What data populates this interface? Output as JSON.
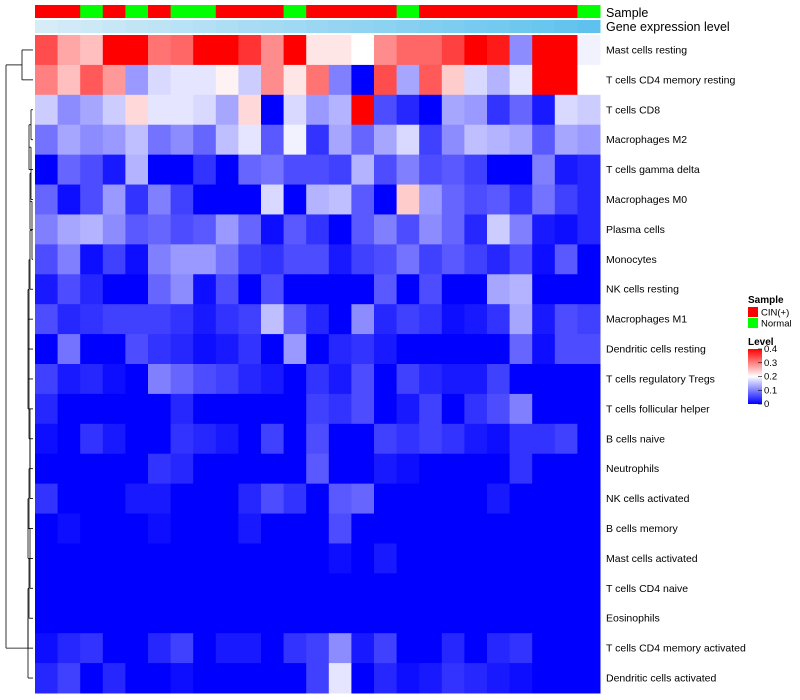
{
  "chart_data": {
    "type": "heatmap",
    "annotations": {
      "sample_label": "Sample",
      "expr_label": "Gene expression level",
      "sample": [
        0,
        0,
        1,
        0,
        1,
        0,
        1,
        1,
        0,
        0,
        0,
        1,
        0,
        0,
        0,
        0,
        1,
        0,
        0,
        0,
        0,
        0,
        0,
        0,
        1
      ],
      "expr_rank": [
        0,
        1,
        2,
        3,
        4,
        5,
        6,
        7,
        8,
        9,
        10,
        11,
        12,
        13,
        14,
        15,
        16,
        17,
        18,
        19,
        20,
        21,
        22,
        23,
        24
      ]
    },
    "rows": [
      "Mast cells resting",
      "T cells CD4 memory resting",
      "T cells CD8",
      "Macrophages M2",
      "T cells gamma delta",
      "Macrophages M0",
      "Plasma cells",
      "Monocytes",
      "NK cells resting",
      "Macrophages M1",
      "Dendritic cells resting",
      "T cells regulatory  Tregs",
      "T cells follicular helper",
      "B cells naive",
      "Neutrophils",
      "NK cells activated",
      "B cells memory",
      "Mast cells activated",
      "T cells CD4 naive",
      "Eosinophils",
      "T cells CD4 memory activated",
      "Dendritic cells activated"
    ],
    "values": [
      [
        0.34,
        0.27,
        0.25,
        0.4,
        0.4,
        0.31,
        0.32,
        0.4,
        0.4,
        0.36,
        0.29,
        0.4,
        0.22,
        0.22,
        0.2,
        0.29,
        0.32,
        0.32,
        0.35,
        0.4,
        0.38,
        0.11,
        0.4,
        0.4,
        0.19
      ],
      [
        0.3,
        0.25,
        0.33,
        0.28,
        0.12,
        0.17,
        0.18,
        0.18,
        0.21,
        0.16,
        0.29,
        0.22,
        0.31,
        0.1,
        0.0,
        0.34,
        0.13,
        0.33,
        0.24,
        0.17,
        0.14,
        0.18,
        0.4,
        0.4,
        0.2
      ],
      [
        0.16,
        0.11,
        0.13,
        0.16,
        0.23,
        0.18,
        0.18,
        0.17,
        0.13,
        0.23,
        0.0,
        0.17,
        0.12,
        0.14,
        0.4,
        0.06,
        0.03,
        0.0,
        0.13,
        0.12,
        0.04,
        0.08,
        0.02,
        0.17,
        0.16
      ],
      [
        0.09,
        0.13,
        0.11,
        0.12,
        0.15,
        0.09,
        0.11,
        0.08,
        0.15,
        0.18,
        0.07,
        0.19,
        0.04,
        0.13,
        0.08,
        0.13,
        0.17,
        0.05,
        0.11,
        0.15,
        0.14,
        0.13,
        0.07,
        0.13,
        0.12
      ],
      [
        0.0,
        0.08,
        0.06,
        0.02,
        0.14,
        0.0,
        0.0,
        0.04,
        0.0,
        0.08,
        0.09,
        0.06,
        0.06,
        0.05,
        0.14,
        0.06,
        0.1,
        0.06,
        0.07,
        0.05,
        0.0,
        0.0,
        0.1,
        0.02,
        0.03
      ],
      [
        0.08,
        0.01,
        0.06,
        0.12,
        0.04,
        0.1,
        0.05,
        0.0,
        0.0,
        0.0,
        0.17,
        0.0,
        0.14,
        0.15,
        0.07,
        0.0,
        0.24,
        0.12,
        0.08,
        0.06,
        0.07,
        0.04,
        0.09,
        0.05,
        0.03
      ],
      [
        0.1,
        0.13,
        0.14,
        0.11,
        0.07,
        0.08,
        0.06,
        0.07,
        0.12,
        0.08,
        0.01,
        0.07,
        0.04,
        0.0,
        0.07,
        0.1,
        0.06,
        0.11,
        0.08,
        0.03,
        0.16,
        0.1,
        0.02,
        0.01,
        0.03
      ],
      [
        0.06,
        0.1,
        0.01,
        0.05,
        0.01,
        0.1,
        0.12,
        0.12,
        0.09,
        0.05,
        0.04,
        0.06,
        0.06,
        0.02,
        0.05,
        0.06,
        0.09,
        0.05,
        0.07,
        0.05,
        0.03,
        0.06,
        0.01,
        0.07,
        0.0
      ],
      [
        0.02,
        0.06,
        0.03,
        0.0,
        0.0,
        0.08,
        0.11,
        0.01,
        0.06,
        0.0,
        0.06,
        0.0,
        0.0,
        0.0,
        0.0,
        0.07,
        0.0,
        0.06,
        0.0,
        0.0,
        0.13,
        0.14,
        0.0,
        0.0,
        0.0
      ],
      [
        0.06,
        0.03,
        0.04,
        0.05,
        0.05,
        0.05,
        0.04,
        0.02,
        0.04,
        0.05,
        0.15,
        0.07,
        0.03,
        0.0,
        0.11,
        0.03,
        0.05,
        0.04,
        0.01,
        0.02,
        0.04,
        0.13,
        0.02,
        0.06,
        0.05
      ],
      [
        0.0,
        0.09,
        0.0,
        0.0,
        0.06,
        0.04,
        0.03,
        0.01,
        0.02,
        0.04,
        0.0,
        0.12,
        0.0,
        0.03,
        0.04,
        0.02,
        0.0,
        0.0,
        0.0,
        0.0,
        0.0,
        0.08,
        0.01,
        0.06,
        0.06
      ],
      [
        0.05,
        0.02,
        0.03,
        0.01,
        0.0,
        0.1,
        0.08,
        0.06,
        0.05,
        0.03,
        0.02,
        0.0,
        0.04,
        0.02,
        0.06,
        0.0,
        0.05,
        0.03,
        0.02,
        0.02,
        0.05,
        0.0,
        0.0,
        0.0,
        0.0
      ],
      [
        0.03,
        0.0,
        0.0,
        0.0,
        0.0,
        0.0,
        0.03,
        0.0,
        0.0,
        0.0,
        0.0,
        0.0,
        0.05,
        0.04,
        0.06,
        0.0,
        0.02,
        0.05,
        0.0,
        0.04,
        0.06,
        0.1,
        0.0,
        0.0,
        0.0
      ],
      [
        0.01,
        0.0,
        0.04,
        0.02,
        0.0,
        0.0,
        0.04,
        0.03,
        0.02,
        0.0,
        0.05,
        0.0,
        0.06,
        0.0,
        0.0,
        0.05,
        0.04,
        0.05,
        0.04,
        0.02,
        0.01,
        0.04,
        0.04,
        0.05,
        0.0
      ],
      [
        0.0,
        0.0,
        0.0,
        0.0,
        0.0,
        0.04,
        0.03,
        0.0,
        0.0,
        0.0,
        0.0,
        0.0,
        0.07,
        0.0,
        0.0,
        0.02,
        0.01,
        0.0,
        0.0,
        0.0,
        0.0,
        0.04,
        0.0,
        0.0,
        0.0
      ],
      [
        0.04,
        0.0,
        0.0,
        0.0,
        0.02,
        0.02,
        0.0,
        0.0,
        0.0,
        0.03,
        0.06,
        0.04,
        0.0,
        0.07,
        0.08,
        0.0,
        0.0,
        0.0,
        0.0,
        0.0,
        0.02,
        0.0,
        0.0,
        0.0,
        0.0
      ],
      [
        0.0,
        0.01,
        0.0,
        0.0,
        0.0,
        0.01,
        0.0,
        0.0,
        0.0,
        0.02,
        0.0,
        0.0,
        0.0,
        0.06,
        0.0,
        0.0,
        0.0,
        0.0,
        0.0,
        0.0,
        0.0,
        0.0,
        0.0,
        0.0,
        0.0
      ],
      [
        0.0,
        0.0,
        0.0,
        0.0,
        0.0,
        0.0,
        0.0,
        0.0,
        0.0,
        0.0,
        0.0,
        0.0,
        0.0,
        0.01,
        0.0,
        0.02,
        0.0,
        0.0,
        0.0,
        0.0,
        0.0,
        0.0,
        0.0,
        0.0,
        0.0
      ],
      [
        0.0,
        0.0,
        0.0,
        0.0,
        0.0,
        0.0,
        0.0,
        0.0,
        0.0,
        0.0,
        0.0,
        0.0,
        0.0,
        0.0,
        0.0,
        0.0,
        0.0,
        0.0,
        0.0,
        0.0,
        0.0,
        0.0,
        0.0,
        0.0,
        0.0
      ],
      [
        0.0,
        0.0,
        0.0,
        0.0,
        0.0,
        0.0,
        0.0,
        0.0,
        0.0,
        0.0,
        0.0,
        0.0,
        0.0,
        0.0,
        0.0,
        0.0,
        0.0,
        0.0,
        0.0,
        0.0,
        0.0,
        0.0,
        0.0,
        0.0,
        0.0
      ],
      [
        0.01,
        0.03,
        0.04,
        0.0,
        0.0,
        0.03,
        0.05,
        0.0,
        0.02,
        0.02,
        0.0,
        0.04,
        0.05,
        0.11,
        0.02,
        0.05,
        0.0,
        0.0,
        0.03,
        0.0,
        0.03,
        0.04,
        0.0,
        0.0,
        0.0
      ],
      [
        0.03,
        0.05,
        0.0,
        0.03,
        0.0,
        0.0,
        0.01,
        0.0,
        0.0,
        0.0,
        0.0,
        0.0,
        0.05,
        0.18,
        0.0,
        0.03,
        0.01,
        0.02,
        0.04,
        0.03,
        0.02,
        0.01,
        0.0,
        0.0,
        0.0
      ]
    ],
    "legend": {
      "sample_title": "Sample",
      "sample_items": [
        {
          "label": "CIN(+)",
          "color": "#ff0000"
        },
        {
          "label": "Normal",
          "color": "#00ff00"
        }
      ],
      "level_title": "Level",
      "level_ticks": [
        "0.4",
        "0.3",
        "0.2",
        "0.1",
        "0"
      ],
      "level_tick_values": [
        0.4,
        0.3,
        0.2,
        0.1,
        0
      ]
    },
    "color_scale": {
      "low": "#0000ff",
      "mid": "#ffffff",
      "high": "#ff0000",
      "min": 0,
      "mid_value": 0.2,
      "max": 0.4
    },
    "annotation_colors": {
      "cin": "#ff0000",
      "normal": "#00ff00",
      "expr_low": "#d6ecf7",
      "expr_high": "#5fc2ee"
    }
  }
}
